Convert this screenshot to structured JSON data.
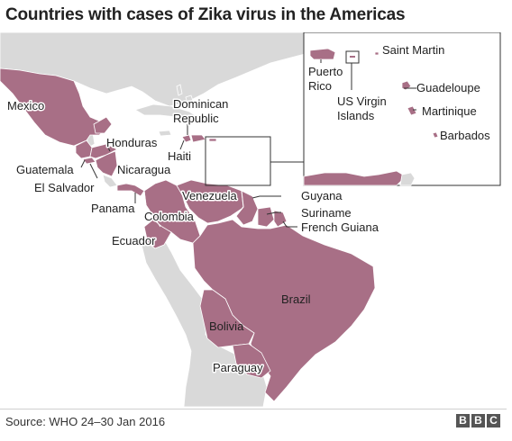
{
  "title": "Countries with cases of Zika virus in the Americas",
  "source": "Source: WHO 24–30 Jan 2016",
  "logo": {
    "letters": [
      "B",
      "B",
      "C"
    ],
    "alt": "BBC"
  },
  "colors": {
    "affected": "#a86f86",
    "land": "#d9d9d9",
    "ocean": "#ffffff",
    "border": "#ffffff",
    "text": "#222222"
  },
  "countries": {
    "mexico": "Mexico",
    "guatemala": "Guatemala",
    "el_salvador": "El Salvador",
    "honduras": "Honduras",
    "nicaragua": "Nicaragua",
    "panama": "Panama",
    "haiti": "Haiti",
    "dominican_republic_line1": "Dominican",
    "dominican_republic_line2": "Republic",
    "venezuela": "Venezuela",
    "colombia": "Colombia",
    "ecuador": "Ecuador",
    "guyana": "Guyana",
    "suriname": "Suriname",
    "french_guiana": "French Guiana",
    "brazil": "Brazil",
    "bolivia": "Bolivia",
    "paraguay": "Paraguay"
  },
  "inset": {
    "puerto_rico_line1": "Puerto",
    "puerto_rico_line2": "Rico",
    "us_virgin_islands_line1": "US Virgin",
    "us_virgin_islands_line2": "Islands",
    "saint_martin": "Saint Martin",
    "guadeloupe": "Guadeloupe",
    "martinique": "Martinique",
    "barbados": "Barbados"
  }
}
